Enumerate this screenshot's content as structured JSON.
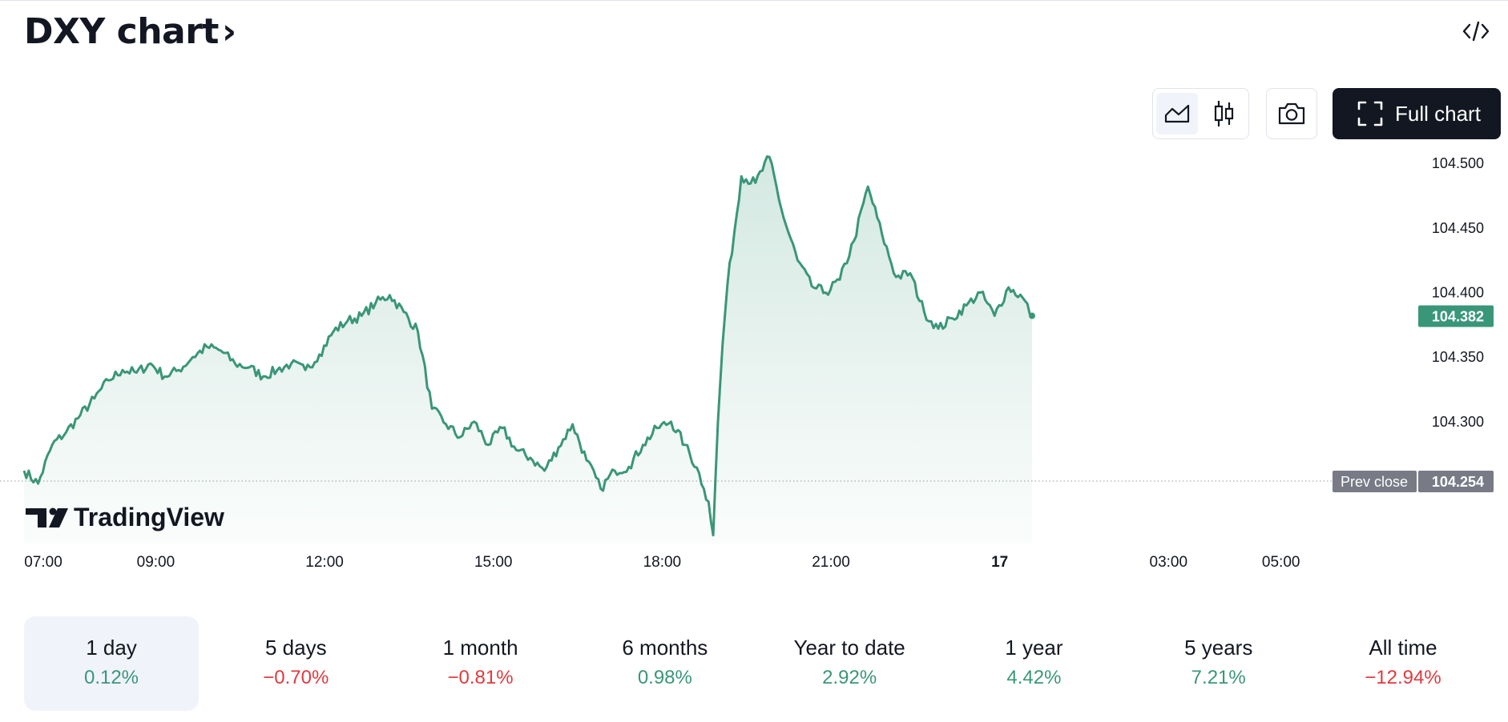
{
  "header": {
    "title": "DXY chart",
    "chevron": "›",
    "embed_icon": "code-embed-icon"
  },
  "toolbar": {
    "area_icon": "area-chart-icon",
    "candle_icon": "candlestick-icon",
    "camera_icon": "camera-icon",
    "full_chart_icon": "fullscreen-icon",
    "full_chart_label": "Full chart"
  },
  "colors": {
    "line": "#3a9679",
    "positive": "#3a9679",
    "negative": "#e03a3e",
    "prev_close_badge": "#787b86",
    "dark_button": "#131722"
  },
  "chart_data": {
    "type": "area",
    "watermark": "TradingView",
    "x_ticks": [
      "07:00",
      "09:00",
      "12:00",
      "15:00",
      "18:00",
      "21:00",
      "17",
      "03:00",
      "05:00"
    ],
    "y_ticks": [
      "104.500",
      "104.450",
      "104.400",
      "104.350",
      "104.300"
    ],
    "ylim": [
      104.205,
      104.515
    ],
    "last_value": 104.382,
    "last_value_label": "104.382",
    "prev_close": 104.254,
    "prev_close_label": "Prev close",
    "prev_close_value_label": "104.254",
    "series": [
      {
        "x": [
          "07:00",
          "07:15",
          "07:30",
          "07:45",
          "08:00",
          "08:15",
          "08:30",
          "08:45",
          "09:00",
          "09:15",
          "09:30",
          "09:45",
          "10:00",
          "10:15",
          "10:30",
          "10:45",
          "11:00",
          "11:15",
          "11:30",
          "11:45",
          "12:00",
          "12:15",
          "12:30",
          "12:45",
          "13:00",
          "13:15",
          "13:30",
          "13:45",
          "14:00",
          "14:15",
          "14:30",
          "14:45",
          "15:00",
          "15:15",
          "15:30",
          "15:45",
          "16:00",
          "16:15",
          "16:30",
          "16:45",
          "17:00",
          "17:15",
          "17:30",
          "17:45",
          "18:00",
          "18:15",
          "18:30",
          "18:45",
          "19:00",
          "19:05",
          "19:10",
          "19:15",
          "19:20",
          "19:25",
          "19:30",
          "19:45",
          "20:00",
          "20:15",
          "20:30",
          "20:45",
          "21:00",
          "21:15",
          "21:30",
          "21:45",
          "22:00",
          "22:15",
          "22:30",
          "22:45",
          "23:00",
          "23:15",
          "23:30",
          "23:45",
          "00:00",
          "00:15",
          "00:30",
          "00:45",
          "00:55"
        ],
        "values": [
          104.262,
          104.252,
          104.282,
          104.292,
          104.305,
          104.318,
          104.332,
          104.34,
          104.338,
          104.345,
          104.335,
          104.34,
          104.35,
          104.358,
          104.355,
          104.345,
          104.342,
          104.335,
          104.34,
          104.345,
          104.34,
          104.352,
          104.37,
          104.378,
          104.382,
          104.392,
          104.398,
          104.385,
          104.37,
          104.31,
          104.298,
          104.288,
          104.3,
          104.282,
          104.295,
          104.278,
          104.272,
          104.262,
          104.28,
          104.298,
          104.27,
          104.248,
          104.262,
          104.265,
          104.282,
          104.295,
          104.3,
          104.282,
          104.26,
          104.248,
          104.238,
          104.212,
          104.3,
          104.36,
          104.405,
          104.49,
          104.485,
          104.505,
          104.458,
          104.425,
          104.405,
          104.4,
          104.41,
          104.44,
          104.482,
          104.445,
          104.412,
          104.415,
          104.385,
          104.372,
          104.38,
          104.39,
          104.4,
          104.382,
          104.404,
          104.396,
          104.382
        ]
      }
    ]
  },
  "ranges": [
    {
      "label": "1 day",
      "value": "0.12%",
      "direction": "up"
    },
    {
      "label": "5 days",
      "value": "−0.70%",
      "direction": "down"
    },
    {
      "label": "1 month",
      "value": "−0.81%",
      "direction": "down"
    },
    {
      "label": "6 months",
      "value": "0.98%",
      "direction": "up"
    },
    {
      "label": "Year to date",
      "value": "2.92%",
      "direction": "up"
    },
    {
      "label": "1 year",
      "value": "4.42%",
      "direction": "up"
    },
    {
      "label": "5 years",
      "value": "7.21%",
      "direction": "up"
    },
    {
      "label": "All time",
      "value": "−12.94%",
      "direction": "down"
    }
  ]
}
